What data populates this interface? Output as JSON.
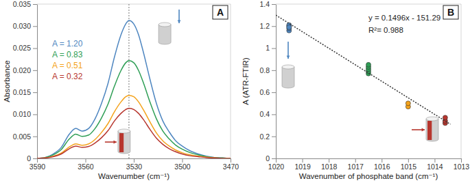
{
  "chart_data": [
    {
      "type": "line",
      "title": "A",
      "x_label": "Wavenumber (cm⁻¹)",
      "y_label": "Absorbance",
      "x": [
        3590,
        3585,
        3580,
        3575,
        3570,
        3566,
        3562,
        3558,
        3554,
        3550,
        3546,
        3542,
        3538,
        3535,
        3533,
        3530,
        3527,
        3524,
        3520,
        3516,
        3512,
        3508,
        3504,
        3500,
        3495,
        3490,
        3485,
        3480,
        3475,
        3470
      ],
      "series": [
        {
          "name": "A = 1.20",
          "color": "#4e86c0",
          "values": [
            0,
            0.0002,
            0.001,
            0.0025,
            0.0055,
            0.0068,
            0.0062,
            0.0068,
            0.009,
            0.0125,
            0.017,
            0.023,
            0.028,
            0.0305,
            0.0313,
            0.0305,
            0.028,
            0.024,
            0.018,
            0.0125,
            0.0085,
            0.006,
            0.004,
            0.0028,
            0.0017,
            0.001,
            0.0005,
            0.0002,
            0.0001,
            0
          ]
        },
        {
          "name": "A = 0.83",
          "color": "#2e9e55",
          "values": [
            0,
            0.0002,
            0.0008,
            0.002,
            0.0044,
            0.0055,
            0.005,
            0.0053,
            0.0068,
            0.0092,
            0.0123,
            0.0164,
            0.0199,
            0.0217,
            0.0222,
            0.0217,
            0.0199,
            0.0171,
            0.0128,
            0.009,
            0.0062,
            0.0044,
            0.003,
            0.0021,
            0.0013,
            0.0008,
            0.0004,
            0.0002,
            0.0001,
            0
          ]
        },
        {
          "name": "A = 0.51",
          "color": "#f4a21b",
          "values": [
            0,
            0.0001,
            0.0005,
            0.0012,
            0.0026,
            0.0033,
            0.003,
            0.0033,
            0.0043,
            0.0059,
            0.0079,
            0.0106,
            0.0128,
            0.014,
            0.0143,
            0.014,
            0.0128,
            0.011,
            0.0083,
            0.0058,
            0.004,
            0.0028,
            0.0019,
            0.0013,
            0.0008,
            0.0005,
            0.0003,
            0.0001,
            0,
            0
          ]
        },
        {
          "name": "A = 0.32",
          "color": "#b7362e",
          "values": [
            0,
            0.0001,
            0.0004,
            0.001,
            0.0022,
            0.0028,
            0.0025,
            0.0027,
            0.0035,
            0.0047,
            0.0063,
            0.0085,
            0.0102,
            0.0111,
            0.0114,
            0.0111,
            0.0102,
            0.0088,
            0.0066,
            0.0046,
            0.0032,
            0.0022,
            0.0015,
            0.001,
            0.0006,
            0.0004,
            0.0002,
            0.0001,
            0,
            0
          ]
        }
      ],
      "reference_line": 3533,
      "legend": "top-left",
      "xlim": [
        3590,
        3470
      ],
      "xticks": [
        3590,
        3560,
        3530,
        3500,
        3470
      ],
      "ylim": [
        0,
        0.035
      ],
      "yticks": [
        0,
        0.005,
        {
          "value": 0.01,
          "label": "0.010"
        },
        0.015,
        {
          "value": 0.02,
          "label": "0.020"
        },
        0.025,
        {
          "value": 0.03,
          "label": "0.030"
        },
        0.035
      ],
      "grid": false
    },
    {
      "type": "scatter",
      "title": "B",
      "x_label": "Wavenumber of phosphate band (cm⁻¹)",
      "y_label": "A (ATR-FTIR)",
      "annotations": [
        "y = 0.1496x - 151.29",
        "R²= 0.988"
      ],
      "series": [
        {
          "color": "#4e86c0",
          "x": [
            1019.5,
            1019.5,
            1019.5,
            1019.5,
            1019.5
          ],
          "values": [
            1.16,
            1.18,
            1.2,
            1.21,
            1.19
          ]
        },
        {
          "color": "#2e9e55",
          "x": [
            1016.5,
            1016.5,
            1016.5,
            1016.5,
            1016.5
          ],
          "values": [
            0.77,
            0.79,
            0.81,
            0.83,
            0.85
          ]
        },
        {
          "color": "#f4a21b",
          "x": [
            1015,
            1015
          ],
          "values": [
            0.47,
            0.5
          ]
        },
        {
          "color": "#b7362e",
          "x": [
            1013.6,
            1013.6,
            1013.6
          ],
          "values": [
            0.32,
            0.34,
            0.37
          ]
        },
        {
          "type": "line",
          "line_style": "dotted",
          "color": "#333333",
          "x": [
            1020,
            1013.4
          ],
          "values": [
            1.3,
            0.31
          ]
        }
      ],
      "marker": "circle",
      "xlim": [
        1020,
        1013
      ],
      "xticks": [
        1020,
        1019,
        1018,
        1017,
        1016,
        1015,
        1014,
        1013
      ],
      "ylim": [
        0,
        1.4
      ],
      "yticks": [
        0,
        0.2,
        0.4,
        0.6,
        0.8,
        1,
        1.2,
        1.4
      ],
      "grid": false
    }
  ]
}
